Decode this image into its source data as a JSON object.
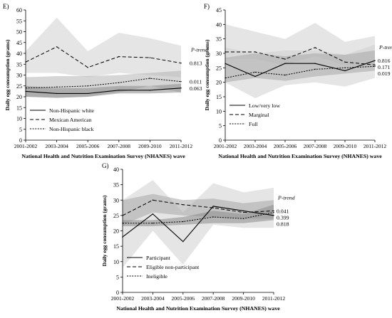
{
  "chart_data": [
    {
      "panel_label": "E)",
      "type": "line",
      "xlabel": "National Health and Nutrition Examination Survey (NHANES) wave",
      "ylabel": "Daily egg consumption (grams)",
      "categories": [
        "2001-2002",
        "2003-2004",
        "2005-2006",
        "2007-2008",
        "2009-2010",
        "2011-2012"
      ],
      "ylim": [
        0,
        60
      ],
      "yticks": [
        0,
        5,
        10,
        15,
        20,
        25,
        30,
        35,
        40,
        45,
        50,
        55,
        60
      ],
      "ptrend_header": "P-trend",
      "legend_position": "bottom-left",
      "series": [
        {
          "name": "Non-Hispanic white",
          "style": "solid",
          "values": [
            22.5,
            21.5,
            21.5,
            23,
            23,
            24
          ],
          "ci_low": [
            20,
            19.5,
            20,
            21.5,
            21.5,
            22
          ],
          "ci_high": [
            25,
            24,
            24,
            25,
            25,
            26
          ],
          "band_color": "#8c8c8c",
          "p_trend": "0.063"
        },
        {
          "name": "Mexican American",
          "style": "dashed",
          "values": [
            36,
            43,
            33.5,
            38.5,
            38,
            35.5
          ],
          "ci_low": [
            31,
            31,
            29,
            31,
            30,
            29
          ],
          "ci_high": [
            41,
            56.5,
            41,
            49.5,
            47,
            43.5
          ],
          "band_color": "#d0d0d0",
          "p_trend": "0.813"
        },
        {
          "name": "Non-Hispanic black",
          "style": "dotted",
          "values": [
            24,
            24.5,
            25,
            26.5,
            28.5,
            27
          ],
          "ci_low": [
            20,
            19.5,
            20,
            22,
            25,
            22
          ],
          "ci_high": [
            29,
            29.5,
            29.5,
            30,
            31,
            32
          ],
          "band_color": "#b4b4b4",
          "p_trend": "0.011"
        }
      ]
    },
    {
      "panel_label": "F)",
      "type": "line",
      "xlabel": "National Health and Nutrition Examination Survey (NHANES) wave",
      "ylabel": "Daily egg consumption (grams)",
      "categories": [
        "2001-2002",
        "2003-2004",
        "2005-2006",
        "2007-2008",
        "2009-2010",
        "2011-2012"
      ],
      "ylim": [
        0,
        45
      ],
      "yticks": [
        0,
        5,
        10,
        15,
        20,
        25,
        30,
        35,
        40,
        45
      ],
      "ptrend_header": "P-trend",
      "legend_position": "bottom-left",
      "series": [
        {
          "name": "Low/very low",
          "style": "solid",
          "values": [
            26.5,
            22,
            26.5,
            26.5,
            24,
            27.5
          ],
          "ci_low": [
            20,
            14.5,
            19,
            20,
            18.5,
            21.5
          ],
          "ci_high": [
            32,
            30,
            31,
            31,
            29.5,
            33
          ],
          "band_color": "#d0d0d0",
          "p_trend": "0.816"
        },
        {
          "name": "Marginal",
          "style": "dashed",
          "values": [
            30.5,
            30.5,
            28,
            32,
            27,
            26
          ],
          "ci_low": [
            28,
            28,
            26,
            29,
            26,
            25
          ],
          "ci_high": [
            40,
            37.5,
            35,
            40.5,
            34,
            36
          ],
          "band_color": "#d0d0d0",
          "p_trend": "0.171"
        },
        {
          "name": "Full",
          "style": "dotted",
          "values": [
            21.5,
            23.5,
            22.5,
            24.5,
            25,
            25.5
          ],
          "ci_low": [
            20,
            21.5,
            20.5,
            22,
            23,
            24
          ],
          "ci_high": [
            28.5,
            30,
            29,
            30,
            29.5,
            31
          ],
          "band_color": "#a8a8a8",
          "p_trend": "0.019"
        }
      ]
    },
    {
      "panel_label": "G)",
      "type": "line",
      "xlabel": "National Health and Nutrition Examination Survey (NHANES) wave",
      "ylabel": "Daily egg consumption (grams)",
      "categories": [
        "2001-2002",
        "2003-2004",
        "2005-2006",
        "2007-2008",
        "2009-2010",
        "2011-2012"
      ],
      "ylim": [
        0,
        40
      ],
      "yticks": [
        0,
        5,
        10,
        15,
        20,
        25,
        30,
        35,
        40
      ],
      "ptrend_header": "P-trend",
      "legend_position": "bottom-left",
      "series": [
        {
          "name": "Participant",
          "style": "solid",
          "values": [
            18,
            25.5,
            16.5,
            28,
            26.5,
            25
          ],
          "ci_low": [
            8,
            20,
            9,
            22,
            21,
            21
          ],
          "ci_high": [
            30,
            36.5,
            26,
            35.5,
            32.5,
            34
          ],
          "band_color": "#d0d0d0",
          "p_trend": "0.818"
        },
        {
          "name": "Eligible non-participant",
          "style": "dashed",
          "values": [
            25,
            30,
            28.5,
            27.5,
            26,
            26.5
          ],
          "ci_low": [
            22,
            26,
            25,
            24.5,
            24,
            24
          ],
          "ci_high": [
            30,
            32,
            30,
            30.5,
            29,
            30
          ],
          "band_color": "#a8a8a8",
          "p_trend": "0.041"
        },
        {
          "name": "Ineligible",
          "style": "dotted",
          "values": [
            22.5,
            22.5,
            23,
            24.5,
            24,
            26
          ],
          "ci_low": [
            21.5,
            21.5,
            22,
            22.5,
            22.5,
            23.5
          ],
          "ci_high": [
            23.5,
            23.5,
            24.5,
            26.5,
            25.5,
            28.5
          ],
          "band_color": "#8c8c8c",
          "p_trend": "0.399"
        }
      ]
    }
  ]
}
